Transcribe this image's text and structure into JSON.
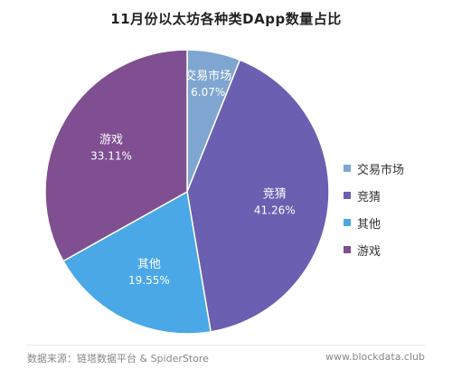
{
  "chart_data": {
    "type": "pie",
    "title": "11月份以太坊各种类DApp数量占比",
    "slices": [
      {
        "name": "交易市场",
        "label": "交易市场",
        "value": 6.07,
        "value_label": "6.07%",
        "color": "#7fa6d1"
      },
      {
        "name": "竞猜",
        "label": "竞猜",
        "value": 41.26,
        "value_label": "41.26%",
        "color": "#6a5fb1"
      },
      {
        "name": "其他",
        "label": "其他",
        "value": 19.55,
        "value_label": "19.55%",
        "color": "#4aa8e6"
      },
      {
        "name": "游戏",
        "label": "游戏",
        "value": 33.11,
        "value_label": "33.11%",
        "color": "#7f4f91"
      }
    ],
    "legend": [
      "交易市场",
      "竞猜",
      "其他",
      "游戏"
    ],
    "legend_position": "right"
  },
  "footer": {
    "source": "数据来源：链塔数据平台 & SpiderStore",
    "site": "www.blockdata.club"
  }
}
